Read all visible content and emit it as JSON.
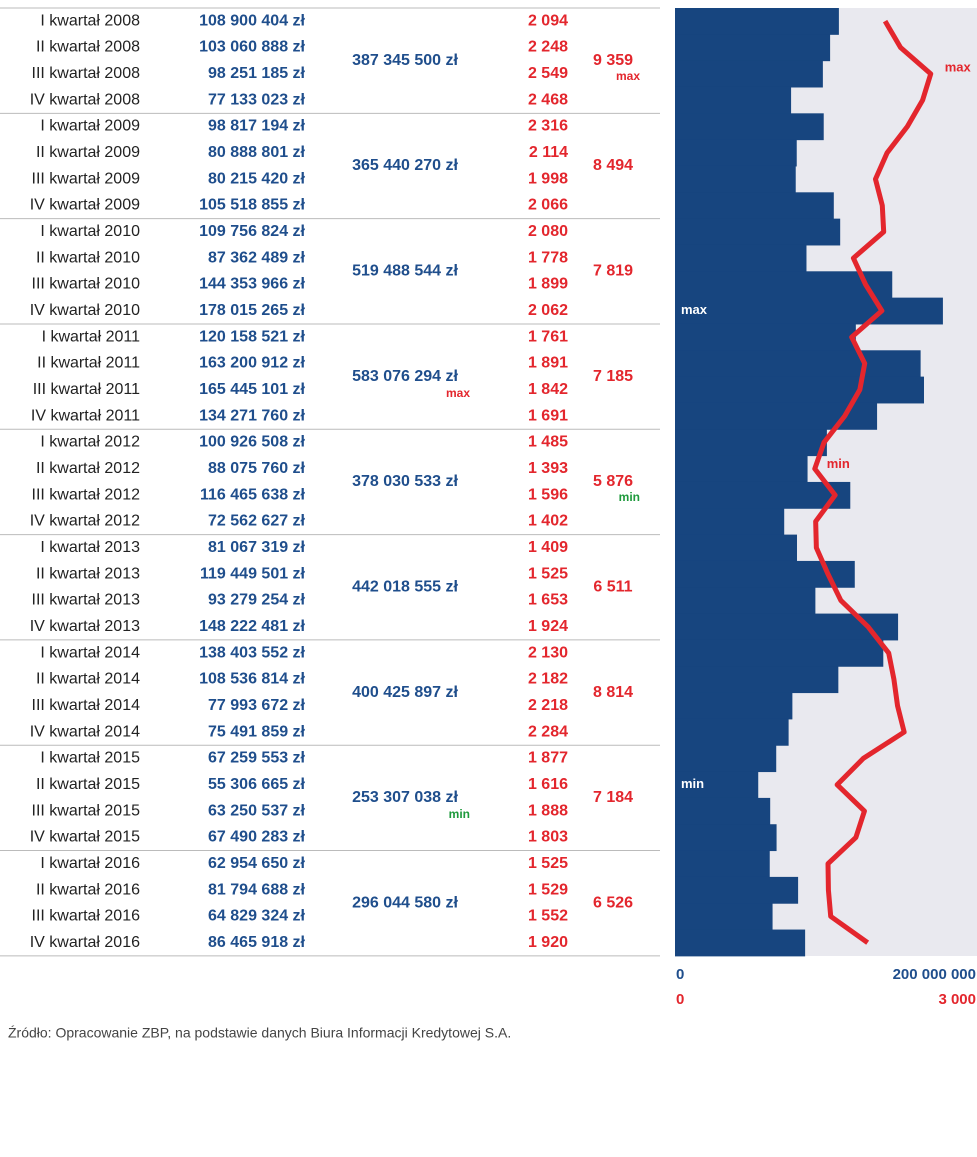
{
  "chart_data": {
    "type": "bar",
    "orientation": "horizontal",
    "categories": [
      "I kwartał 2008",
      "II kwartał 2008",
      "III kwartał 2008",
      "IV kwartał 2008",
      "I kwartał 2009",
      "II kwartał 2009",
      "III kwartał 2009",
      "IV kwartał 2009",
      "I kwartał 2010",
      "II kwartał 2010",
      "III kwartał 2010",
      "IV kwartał 2010",
      "I kwartał 2011",
      "II kwartał 2011",
      "III kwartał 2011",
      "IV kwartał 2011",
      "I kwartał 2012",
      "II kwartał 2012",
      "III kwartał 2012",
      "IV kwartał 2012",
      "I kwartał 2013",
      "II kwartał 2013",
      "III kwartał 2013",
      "IV kwartał 2013",
      "I kwartał 2014",
      "II kwartał 2014",
      "III kwartał 2014",
      "IV kwartał 2014",
      "I kwartał 2015",
      "II kwartał 2015",
      "III kwartał 2015",
      "IV kwartał 2015",
      "I kwartał 2016",
      "II kwartał 2016",
      "III kwartał 2016",
      "IV kwartał 2016"
    ],
    "series": [
      {
        "type": "bar",
        "color": "#17457f",
        "values": [
          108900404,
          103060888,
          98251185,
          77133023,
          98817194,
          80888801,
          80215420,
          105518855,
          109756824,
          87362489,
          144353966,
          178015265,
          120158521,
          163200912,
          165445101,
          134271760,
          100926508,
          88075760,
          116465638,
          72562627,
          81067319,
          119449501,
          93279254,
          148222481,
          138403552,
          108536814,
          77993672,
          75491859,
          67259553,
          55306665,
          63250537,
          67490283,
          62954650,
          81794688,
          64829324,
          86465918
        ],
        "value_labels": [
          "108 900 404 zł",
          "103 060 888 zł",
          "98 251 185 zł",
          "77 133 023 zł",
          "98 817 194 zł",
          "80 888 801 zł",
          "80 215 420 zł",
          "105 518 855 zł",
          "109 756 824 zł",
          "87 362 489 zł",
          "144 353 966 zł",
          "178 015 265 zł",
          "120 158 521 zł",
          "163 200 912 zł",
          "165 445 101 zł",
          "134 271 760 zł",
          "100 926 508 zł",
          "88 075 760 zł",
          "116 465 638 zł",
          "72 562 627 zł",
          "81 067 319 zł",
          "119 449 501 zł",
          "93 279 254 zł",
          "148 222 481 zł",
          "138 403 552 zł",
          "108 536 814 zł",
          "77 993 672 zł",
          "75 491 859 zł",
          "67 259 553 zł",
          "55 306 665 zł",
          "63 250 537 zł",
          "67 490 283 zł",
          "62 954 650 zł",
          "81 794 688 zł",
          "64 829 324 zł",
          "86 465 918 zł"
        ]
      },
      {
        "type": "line",
        "axis": "x2",
        "color": "#e3262d",
        "values": [
          2094,
          2248,
          2549,
          2468,
          2316,
          2114,
          1998,
          2066,
          2080,
          1778,
          1899,
          2062,
          1761,
          1891,
          1842,
          1691,
          1485,
          1393,
          1596,
          1402,
          1409,
          1525,
          1653,
          1924,
          2130,
          2182,
          2218,
          2284,
          1877,
          1616,
          1888,
          1803,
          1525,
          1529,
          1552,
          1920
        ],
        "value_labels": [
          "2 094",
          "2 248",
          "2 549",
          "2 468",
          "2 316",
          "2 114",
          "1 998",
          "2 066",
          "2 080",
          "1 778",
          "1 899",
          "2 062",
          "1 761",
          "1 891",
          "1 842",
          "1 691",
          "1 485",
          "1 393",
          "1 596",
          "1 402",
          "1 409",
          "1 525",
          "1 653",
          "1 924",
          "2 130",
          "2 182",
          "2 218",
          "2 284",
          "1 877",
          "1 616",
          "1 888",
          "1 803",
          "1 525",
          "1 529",
          "1 552",
          "1 920"
        ]
      }
    ],
    "xlim": [
      0,
      200000000
    ],
    "xticks": [
      0,
      {
        "value": 200000000,
        "label": "200 000 000"
      }
    ],
    "x2lim": [
      0,
      3000
    ],
    "x2ticks": [
      0,
      {
        "value": 3000,
        "label": "3 000"
      }
    ],
    "bar_max_label": "max",
    "bar_min_label": "min",
    "line_max_label": "max",
    "line_min_label": "min"
  },
  "year_groups": [
    {
      "total_amount": "387 345 500 zł",
      "total_count": "9 359",
      "count_note": "max"
    },
    {
      "total_amount": "365 440 270 zł",
      "total_count": "8 494"
    },
    {
      "total_amount": "519 488 544 zł",
      "total_count": "7 819"
    },
    {
      "total_amount": "583 076 294 zł",
      "total_count": "7 185",
      "amount_note": "max"
    },
    {
      "total_amount": "378 030 533 zł",
      "total_count": "5 876",
      "count_note": "min"
    },
    {
      "total_amount": "442 018 555 zł",
      "total_count": "6 511"
    },
    {
      "total_amount": "400 425 897 zł",
      "total_count": "8 814"
    },
    {
      "total_amount": "253 307 038 zł",
      "total_count": "7 184",
      "amount_note": "min"
    },
    {
      "total_amount": "296 044 580 zł",
      "total_count": "6 526"
    }
  ],
  "source": "Źródło: Opracowanie ZBP, na podstawie danych Biura Informacji Kredytowej S.A."
}
